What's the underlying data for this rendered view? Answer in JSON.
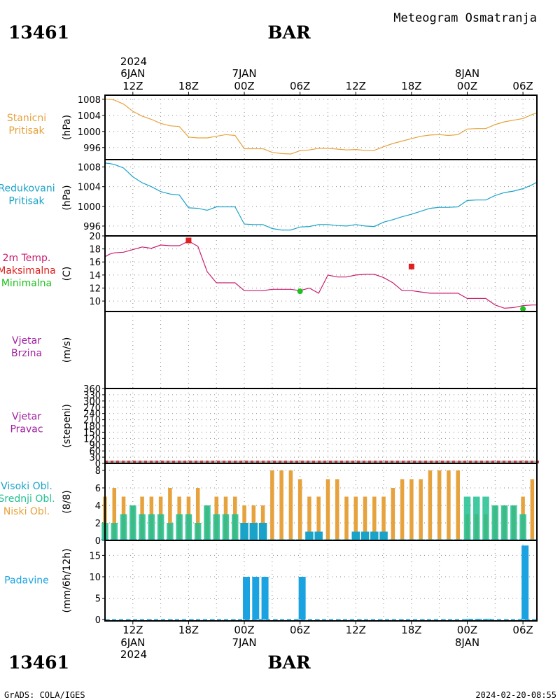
{
  "header": {
    "station_id": "13461",
    "station_name": "BAR",
    "title": "Meteogram Osmatranja"
  },
  "footer": {
    "station_id": "13461",
    "station_name": "BAR",
    "credit": "GrADS: COLA/IGES",
    "timestamp": "2024-02-20-08:55"
  },
  "top_axis": {
    "year": "2024",
    "ticks": [
      {
        "hour": 12,
        "label": "12Z",
        "date": "6JAN"
      },
      {
        "hour": 18,
        "label": "18Z"
      },
      {
        "hour": 24,
        "label": "00Z",
        "date": "7JAN"
      },
      {
        "hour": 30,
        "label": "06Z"
      },
      {
        "hour": 36,
        "label": "12Z"
      },
      {
        "hour": 42,
        "label": "18Z"
      },
      {
        "hour": 48,
        "label": "00Z",
        "date": "8JAN"
      },
      {
        "hour": 54,
        "label": "06Z"
      }
    ]
  },
  "bottom_axis": {
    "year": "2024",
    "ticks": [
      {
        "hour": 12,
        "label": "12Z",
        "date": "6JAN"
      },
      {
        "hour": 18,
        "label": "18Z"
      },
      {
        "hour": 24,
        "label": "00Z",
        "date": "7JAN"
      },
      {
        "hour": 30,
        "label": "06Z"
      },
      {
        "hour": 36,
        "label": "12Z"
      },
      {
        "hour": 42,
        "label": "18Z"
      },
      {
        "hour": 48,
        "label": "00Z",
        "date": "8JAN"
      },
      {
        "hour": 54,
        "label": "06Z"
      }
    ]
  },
  "colors": {
    "pressure_station": "#e6a23c",
    "pressure_reduced": "#1aa3c8",
    "temperature": "#c81e6e",
    "tmax": "#e02020",
    "tmin": "#20c020",
    "wind": "#a020a0",
    "cloud_high": "#1aa3c8",
    "cloud_mid": "#20c090",
    "cloud_low": "#e6a23c",
    "precip": "#1aa3e0",
    "grid": "#888888"
  },
  "chart_data": [
    {
      "type": "line",
      "id": "station_pressure",
      "panel_labels": [
        "Stanicni",
        "Pritisak"
      ],
      "ylabel": "(hPa)",
      "ylim": [
        993,
        1009
      ],
      "yticks": [
        996,
        1000,
        1004,
        1008
      ],
      "x_hours": [
        9,
        9.5,
        10,
        11,
        12,
        13,
        14,
        15,
        16,
        17,
        18,
        19,
        20,
        21,
        22,
        23,
        24,
        25,
        26,
        27,
        28,
        29,
        30,
        31,
        32,
        33,
        34,
        35,
        36,
        37,
        38,
        39,
        40,
        41,
        42,
        43,
        44,
        45,
        46,
        47,
        48,
        49,
        50,
        51,
        52,
        53,
        54,
        55,
        55.5
      ],
      "values": [
        1008,
        1008,
        1007.8,
        1006.8,
        1005,
        1003.8,
        1003,
        1002,
        1001.4,
        1001.2,
        998.6,
        998.4,
        998.4,
        998.8,
        999.2,
        999.0,
        995.7,
        995.7,
        995.7,
        994.8,
        994.5,
        994.4,
        995.2,
        995.4,
        995.8,
        995.8,
        995.6,
        995.4,
        995.5,
        995.3,
        995.3,
        996.2,
        997.0,
        997.6,
        998.2,
        998.8,
        999.1,
        999.2,
        999.0,
        999.2,
        1000.6,
        1000.7,
        1000.7,
        1001.7,
        1002.4,
        1002.8,
        1003.2,
        1004.2,
        1004.6
      ]
    },
    {
      "type": "line",
      "id": "reduced_pressure",
      "panel_labels": [
        "Redukovani",
        "Pritisak"
      ],
      "ylabel": "(hPa)",
      "ylim": [
        994,
        1009.5
      ],
      "yticks": [
        996,
        1000,
        1004,
        1008
      ],
      "x_hours": [
        9,
        9.5,
        10,
        11,
        12,
        13,
        14,
        15,
        16,
        17,
        18,
        19,
        20,
        21,
        22,
        23,
        24,
        25,
        26,
        27,
        28,
        29,
        30,
        31,
        32,
        33,
        34,
        35,
        36,
        37,
        38,
        39,
        40,
        41,
        42,
        43,
        44,
        45,
        46,
        47,
        48,
        49,
        50,
        51,
        52,
        53,
        54,
        55,
        55.5
      ],
      "values": [
        1008.8,
        1008.7,
        1008.5,
        1007.8,
        1006,
        1004.8,
        1004,
        1003,
        1002.5,
        1002.3,
        999.7,
        999.6,
        999.2,
        999.9,
        999.9,
        999.9,
        996.4,
        996.3,
        996.3,
        995.5,
        995.2,
        995.2,
        995.8,
        995.9,
        996.3,
        996.3,
        996.1,
        996.0,
        996.3,
        996.0,
        995.9,
        996.8,
        997.3,
        997.9,
        998.4,
        999.0,
        999.6,
        999.8,
        999.8,
        999.9,
        1001.2,
        1001.3,
        1001.3,
        1002.2,
        1002.8,
        1003.1,
        1003.6,
        1004.4,
        1004.9
      ]
    },
    {
      "type": "line",
      "id": "temperature",
      "panel_labels": [
        "2m Temp.",
        "Maksimalna",
        "Minimalna"
      ],
      "ylabel": "(C)",
      "ylim": [
        8.4,
        20
      ],
      "yticks": [
        10,
        12,
        14,
        16,
        18,
        20
      ],
      "x_hours": [
        9,
        9.5,
        10,
        11,
        12,
        13,
        14,
        15,
        16,
        17,
        18,
        19,
        20,
        21,
        22,
        23,
        24,
        25,
        26,
        27,
        28,
        29,
        30,
        31,
        32,
        33,
        34,
        35,
        36,
        37,
        38,
        39,
        40,
        41,
        42,
        43,
        44,
        45,
        46,
        47,
        48,
        49,
        50,
        51,
        52,
        53,
        54,
        55,
        55.5
      ],
      "values": [
        16.8,
        17.2,
        17.4,
        17.5,
        17.9,
        18.3,
        18.1,
        18.6,
        18.5,
        18.5,
        19.2,
        18.4,
        14.5,
        12.8,
        12.8,
        12.8,
        11.6,
        11.6,
        11.6,
        11.8,
        11.8,
        11.8,
        11.6,
        12.0,
        11.2,
        14.0,
        13.7,
        13.7,
        14.0,
        14.1,
        14.1,
        13.6,
        12.8,
        11.6,
        11.6,
        11.4,
        11.2,
        11.2,
        11.2,
        11.2,
        10.4,
        10.4,
        10.4,
        9.4,
        8.9,
        9.0,
        9.3,
        9.4,
        9.4
      ],
      "tmax": [
        {
          "hour": 18,
          "value": 19.3
        },
        {
          "hour": 42,
          "value": 15.3
        }
      ],
      "tmin": [
        {
          "hour": 30,
          "value": 11.5
        },
        {
          "hour": 54,
          "value": 8.8
        }
      ]
    },
    {
      "type": "line",
      "id": "wind_speed",
      "panel_labels": [
        "Vjetar",
        "Brzina"
      ],
      "ylabel": "(m/s)",
      "values": []
    },
    {
      "type": "scatter",
      "id": "wind_direction",
      "panel_labels": [
        "Vjetar",
        "Pravac"
      ],
      "ylabel": "(stepeni)",
      "ylim": [
        0,
        360
      ],
      "yticks": [
        0,
        30,
        60,
        90,
        120,
        150,
        180,
        210,
        240,
        270,
        300,
        330,
        360
      ],
      "values": []
    },
    {
      "type": "bar",
      "id": "clouds",
      "panel_labels": [
        "Visoki Obl.",
        "Srednji Obl.",
        "Niski Obl."
      ],
      "ylabel": "(8/8)",
      "ylim": [
        0,
        8.8
      ],
      "yticks": [
        0,
        2,
        4,
        6,
        8
      ],
      "x_hours": [
        9,
        10,
        11,
        12,
        13,
        14,
        15,
        16,
        17,
        18,
        19,
        20,
        21,
        22,
        23,
        24,
        25,
        26,
        27,
        28,
        29,
        30,
        31,
        32,
        33,
        34,
        35,
        36,
        37,
        38,
        39,
        40,
        41,
        42,
        43,
        44,
        45,
        46,
        47,
        48,
        49,
        50,
        51,
        52,
        53,
        54,
        55
      ],
      "series": [
        {
          "name": "Niski Obl.",
          "values": [
            5,
            6,
            5,
            4,
            5,
            5,
            5,
            6,
            5,
            5,
            6,
            4,
            5,
            5,
            5,
            4,
            4,
            4,
            8,
            8,
            8,
            7,
            5,
            5,
            7,
            7,
            5,
            5,
            5,
            5,
            5,
            6,
            7,
            7,
            7,
            8,
            8,
            8,
            8,
            3,
            3,
            3,
            4,
            4,
            4,
            5,
            7
          ]
        },
        {
          "name": "Srednji Obl.",
          "values": [
            2,
            2,
            3,
            4,
            3,
            3,
            3,
            2,
            3,
            3,
            2,
            4,
            3,
            3,
            3,
            0,
            0,
            0,
            0,
            0,
            0,
            0,
            0,
            0,
            0,
            0,
            0,
            0,
            0,
            0,
            0,
            0,
            0,
            0,
            0,
            0,
            0,
            0,
            0,
            5,
            5,
            5,
            4,
            4,
            4,
            3,
            0
          ]
        },
        {
          "name": "Visoki Obl.",
          "values": [
            0,
            0,
            0,
            0,
            0,
            0,
            0,
            0,
            0,
            0,
            0,
            0,
            0,
            0,
            0,
            2,
            2,
            2,
            0,
            0,
            0,
            0,
            1,
            1,
            0,
            0,
            0,
            1,
            1,
            1,
            1,
            0,
            0,
            0,
            0,
            0,
            0,
            0,
            0,
            0,
            0,
            0,
            0,
            0,
            0,
            0,
            0
          ]
        }
      ]
    },
    {
      "type": "bar",
      "id": "precipitation",
      "panel_labels": [
        "Padavine"
      ],
      "ylabel": "(mm/6h/12h)",
      "ylim": [
        -0.3,
        18.5
      ],
      "yticks": [
        0,
        5,
        10,
        15
      ],
      "x_hours": [
        24,
        25,
        26,
        30,
        48,
        49,
        50,
        54
      ],
      "values": [
        10,
        10,
        10,
        10,
        0.2,
        0.2,
        0.2,
        17.3
      ]
    }
  ]
}
